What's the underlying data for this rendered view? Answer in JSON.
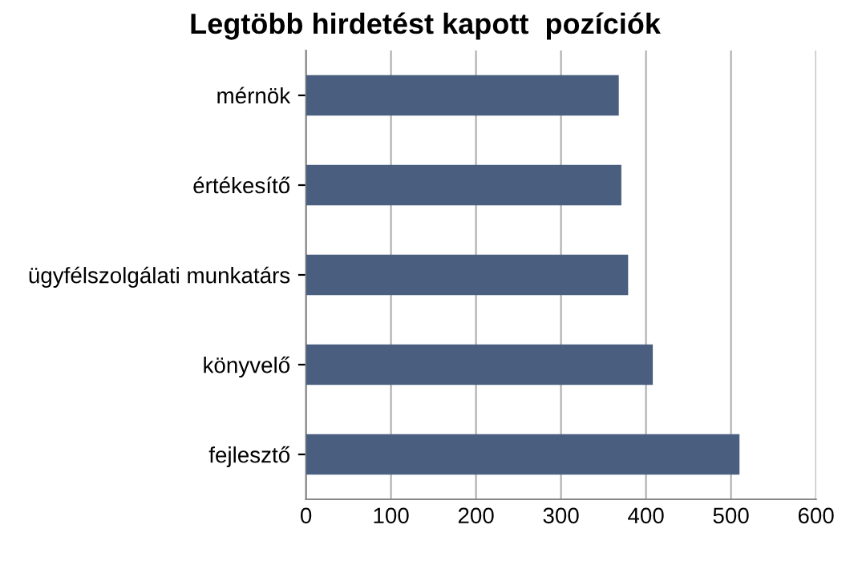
{
  "chart_data": {
    "type": "bar",
    "orientation": "horizontal",
    "title": "Legtöbb hirdetést kapott  pozíciók",
    "categories": [
      "mérnök",
      "értékesítő",
      "ügyfélszolgálati munkatárs",
      "könyvelő",
      "fejlesztő"
    ],
    "values": [
      368,
      371,
      379,
      408,
      510
    ],
    "color": "#4a5f80",
    "xlim": [
      0,
      600
    ],
    "xticks": [
      0,
      100,
      200,
      300,
      400,
      500,
      600
    ],
    "grid": "x",
    "legend": false
  }
}
